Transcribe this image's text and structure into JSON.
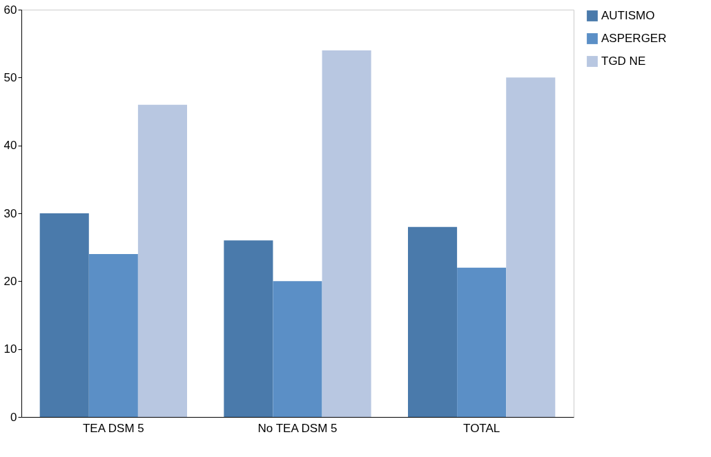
{
  "chart_data": {
    "type": "bar",
    "categories": [
      "TEA DSM 5",
      "No TEA DSM 5",
      "TOTAL"
    ],
    "series": [
      {
        "name": "AUTISMO",
        "color": "#4a7aab",
        "values": [
          30,
          26,
          28
        ]
      },
      {
        "name": "ASPERGER",
        "color": "#5b8fc6",
        "values": [
          24,
          20,
          22
        ]
      },
      {
        "name": "TGD NE",
        "color": "#b8c7e1",
        "values": [
          46,
          54,
          50
        ]
      }
    ],
    "ylim": [
      0,
      60
    ],
    "yticks": [
      0,
      10,
      20,
      30,
      40,
      50,
      60
    ],
    "grid": false,
    "legend": "right"
  }
}
